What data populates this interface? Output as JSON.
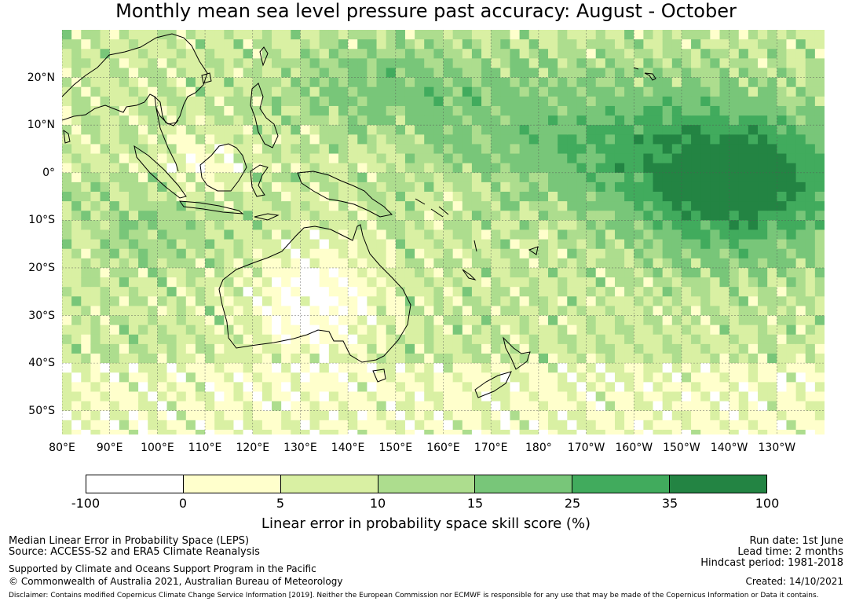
{
  "title": "Monthly mean sea level pressure past accuracy: August - October",
  "map": {
    "lat_labels": [
      "20°N",
      "10°N",
      "0°",
      "10°S",
      "20°S",
      "30°S",
      "40°S",
      "50°S"
    ],
    "lon_labels": [
      "80°E",
      "90°E",
      "100°E",
      "110°E",
      "120°E",
      "130°E",
      "140°E",
      "150°E",
      "160°E",
      "170°E",
      "180°",
      "170°W",
      "160°W",
      "150°W",
      "140°W",
      "130°W"
    ],
    "lon_range": [
      80,
      240
    ],
    "lat_range": [
      -55,
      30
    ]
  },
  "colorbar": {
    "ticks": [
      "-100",
      "0",
      "5",
      "10",
      "15",
      "25",
      "35",
      "100"
    ],
    "colors": [
      "#ffffff",
      "#ffffcc",
      "#d9f0a3",
      "#addd8e",
      "#78c679",
      "#41ab5d",
      "#238443"
    ],
    "label": "Linear error in probability space skill score (%)"
  },
  "footer": {
    "left": {
      "line1": "Median Linear Error in Probability Space (LEPS)",
      "line2": "Source: ACCESS-S2 and ERA5 Climate Reanalysis",
      "line3": "Supported by Climate and Oceans Support Program in the Pacific",
      "line4": "© Commonwealth of Australia 2021, Australian Bureau of Meteorology"
    },
    "right": {
      "run_date": "Run date: 1st June",
      "lead_time": "Lead time: 2 months",
      "hindcast": "Hindcast period: 1981-2018",
      "created": "Created: 14/10/2021"
    },
    "disclaimer": "Disclaimer: Contains modified Copernicus Climate Change Service Information [2019]. Neither the European Commission nor ECMWF is responsible for any use that may be made of the Copernicus Information or Data it contains."
  }
}
